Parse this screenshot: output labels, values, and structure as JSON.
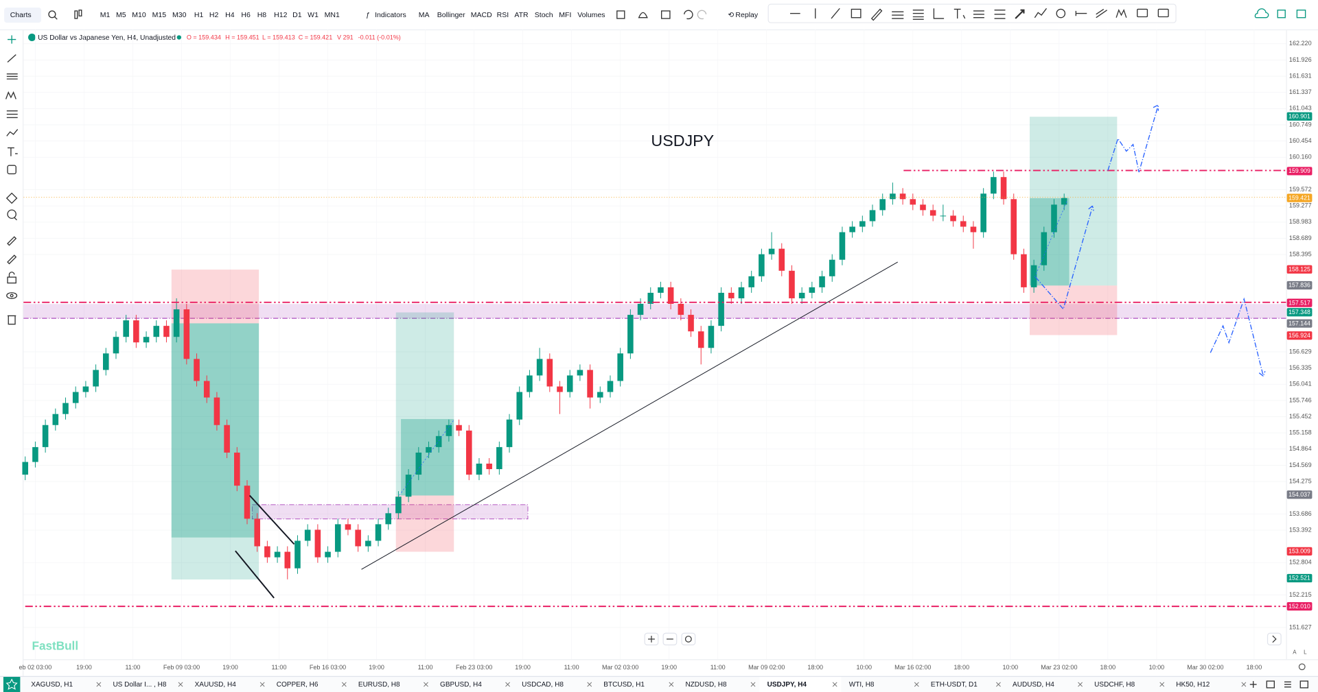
{
  "toolbar": {
    "charts": "Charts",
    "timeframes": [
      "M1",
      "M5",
      "M10",
      "M15",
      "M30",
      "H1",
      "H2",
      "H4",
      "H6",
      "H8",
      "H12",
      "D1",
      "W1",
      "MN1"
    ],
    "active_timeframe": "H4",
    "indicators": "Indicators",
    "studies": [
      "MA",
      "Bollinger",
      "MACD",
      "RSI",
      "ATR",
      "Stoch",
      "MFI",
      "Volumes"
    ],
    "replay": "Replay"
  },
  "legend": {
    "symbol": "US Dollar vs Japanese Yen, H4, Unadjusted",
    "stats": [
      "O = 159.434",
      "H = 159.451",
      "L = 159.413",
      "C = 159.421",
      "V 291",
      "-0.011 (-0.01%)"
    ]
  },
  "chart_data": {
    "type": "candlestick",
    "title": "USDJPY",
    "up_color": "#089981",
    "down_color": "#f23645",
    "grid": true,
    "ylim": [
      151.05,
      162.48
    ],
    "yticks": [
      {
        "value": 162.22,
        "label": "162.220"
      },
      {
        "value": 161.926,
        "label": "161.926"
      },
      {
        "value": 161.631,
        "label": "161.631"
      },
      {
        "value": 161.337,
        "label": "161.337"
      },
      {
        "value": 161.043,
        "label": "161.043"
      },
      {
        "value": 160.749,
        "label": "160.749"
      },
      {
        "value": 160.454,
        "label": "160.454"
      },
      {
        "value": 160.16,
        "label": "160.160"
      },
      {
        "value": 159.572,
        "label": "159.572"
      },
      {
        "value": 159.277,
        "label": "159.277"
      },
      {
        "value": 158.983,
        "label": "158.983"
      },
      {
        "value": 158.689,
        "label": "158.689"
      },
      {
        "value": 158.395,
        "label": "158.395"
      },
      {
        "value": 156.629,
        "label": "156.629"
      },
      {
        "value": 156.335,
        "label": "156.335"
      },
      {
        "value": 156.041,
        "label": "156.041"
      },
      {
        "value": 155.746,
        "label": "155.746"
      },
      {
        "value": 155.452,
        "label": "155.452"
      },
      {
        "value": 155.158,
        "label": "155.158"
      },
      {
        "value": 154.864,
        "label": "154.864"
      },
      {
        "value": 154.569,
        "label": "154.569"
      },
      {
        "value": 154.275,
        "label": "154.275"
      },
      {
        "value": 153.686,
        "label": "153.686"
      },
      {
        "value": 153.392,
        "label": "153.392"
      },
      {
        "value": 152.804,
        "label": "152.804"
      },
      {
        "value": 152.215,
        "label": "152.215"
      },
      {
        "value": 151.627,
        "label": "151.627"
      }
    ],
    "price_tags": [
      {
        "value": 160.901,
        "label": "160.901",
        "color": "#089981"
      },
      {
        "value": 159.909,
        "label": "159.909",
        "color": "#e91e63"
      },
      {
        "value": 159.421,
        "label": "159.421",
        "color": "#f5a623"
      },
      {
        "value": 158.125,
        "label": "158.125",
        "color": "#f23645"
      },
      {
        "value": 157.836,
        "label": "157.836",
        "color": "#787b86"
      },
      {
        "value": 157.517,
        "label": "157.517",
        "color": "#e91e63"
      },
      {
        "value": 157.348,
        "label": "157.348",
        "color": "#089981"
      },
      {
        "value": 157.144,
        "label": "157.144",
        "color": "#787b86"
      },
      {
        "value": 156.924,
        "label": "156.924",
        "color": "#f23645"
      },
      {
        "value": 154.037,
        "label": "154.037",
        "color": "#787b86"
      },
      {
        "value": 153.009,
        "label": "153.009",
        "color": "#f23645"
      },
      {
        "value": 152.521,
        "label": "152.521",
        "color": "#089981"
      },
      {
        "value": 152.01,
        "label": "152.010",
        "color": "#e91e63"
      }
    ],
    "x_labels": [
      "eb 02 03:00",
      "19:00",
      "11:00",
      "Feb 09 03:00",
      "19:00",
      "11:00",
      "Feb 16 03:00",
      "19:00",
      "11:00",
      "Feb 23 03:00",
      "19:00",
      "11:00",
      "Mar 02 03:00",
      "19:00",
      "11:00",
      "Mar 09 02:00",
      "18:00",
      "10:00",
      "Mar 16 02:00",
      "18:00",
      "10:00",
      "Mar 23 02:00",
      "18:00",
      "10:00",
      "Mar 30 02:00",
      "18:00"
    ],
    "candles": [
      [
        154.4,
        154.73,
        154.3,
        154.63
      ],
      [
        154.63,
        155.0,
        154.53,
        154.9
      ],
      [
        154.9,
        155.4,
        154.8,
        155.3
      ],
      [
        155.3,
        155.6,
        155.2,
        155.5
      ],
      [
        155.5,
        155.8,
        155.4,
        155.7
      ],
      [
        155.7,
        156.0,
        155.6,
        155.9
      ],
      [
        155.9,
        156.1,
        155.8,
        156.0
      ],
      [
        156.0,
        156.4,
        155.9,
        156.3
      ],
      [
        156.3,
        156.7,
        156.2,
        156.6
      ],
      [
        156.6,
        157.0,
        156.5,
        156.9
      ],
      [
        156.9,
        157.3,
        156.8,
        157.2
      ],
      [
        157.2,
        157.3,
        156.7,
        156.8
      ],
      [
        156.8,
        157.0,
        156.7,
        156.9
      ],
      [
        156.9,
        157.2,
        156.8,
        157.1
      ],
      [
        157.1,
        157.2,
        156.8,
        156.9
      ],
      [
        156.9,
        157.6,
        156.8,
        157.4
      ],
      [
        157.4,
        157.5,
        156.4,
        156.5
      ],
      [
        156.5,
        156.6,
        156.0,
        156.1
      ],
      [
        156.1,
        156.2,
        155.7,
        155.8
      ],
      [
        155.8,
        155.9,
        155.2,
        155.3
      ],
      [
        155.3,
        155.4,
        154.7,
        154.8
      ],
      [
        154.8,
        154.9,
        154.1,
        154.2
      ],
      [
        154.2,
        154.3,
        153.5,
        153.6
      ],
      [
        153.6,
        153.7,
        153.0,
        153.1
      ],
      [
        153.1,
        153.2,
        152.8,
        152.9
      ],
      [
        152.9,
        153.1,
        152.8,
        153.0
      ],
      [
        153.0,
        153.1,
        152.5,
        152.7
      ],
      [
        152.7,
        153.3,
        152.6,
        153.2
      ],
      [
        153.2,
        153.5,
        153.1,
        153.4
      ],
      [
        153.4,
        153.5,
        152.8,
        152.9
      ],
      [
        152.9,
        153.1,
        152.8,
        153.0
      ],
      [
        153.0,
        153.6,
        152.9,
        153.5
      ],
      [
        153.5,
        153.6,
        153.3,
        153.4
      ],
      [
        153.4,
        153.5,
        153.0,
        153.1
      ],
      [
        153.1,
        153.3,
        153.0,
        153.2
      ],
      [
        153.2,
        153.6,
        153.1,
        153.5
      ],
      [
        153.5,
        153.8,
        153.4,
        153.7
      ],
      [
        153.7,
        154.1,
        153.6,
        154.0
      ],
      [
        154.0,
        154.5,
        153.9,
        154.4
      ],
      [
        154.4,
        154.9,
        154.3,
        154.8
      ],
      [
        154.8,
        155.0,
        154.7,
        154.9
      ],
      [
        154.9,
        155.2,
        154.8,
        155.1
      ],
      [
        155.1,
        155.4,
        155.0,
        155.3
      ],
      [
        155.3,
        155.4,
        155.1,
        155.2
      ],
      [
        155.2,
        155.3,
        154.3,
        154.4
      ],
      [
        154.4,
        154.7,
        154.3,
        154.6
      ],
      [
        154.6,
        154.7,
        154.4,
        154.5
      ],
      [
        154.5,
        155.0,
        154.4,
        154.9
      ],
      [
        154.9,
        155.5,
        154.8,
        155.4
      ],
      [
        155.4,
        156.0,
        155.3,
        155.9
      ],
      [
        155.9,
        156.3,
        155.8,
        156.2
      ],
      [
        156.2,
        156.7,
        156.1,
        156.5
      ],
      [
        156.5,
        156.6,
        155.9,
        156.0
      ],
      [
        156.0,
        156.1,
        155.5,
        155.9
      ],
      [
        155.9,
        156.3,
        155.8,
        156.2
      ],
      [
        156.2,
        156.4,
        156.1,
        156.3
      ],
      [
        156.3,
        156.4,
        155.6,
        155.8
      ],
      [
        155.8,
        156.0,
        155.7,
        155.9
      ],
      [
        155.9,
        156.2,
        155.8,
        156.1
      ],
      [
        156.1,
        156.7,
        156.0,
        156.6
      ],
      [
        156.6,
        157.4,
        156.5,
        157.3
      ],
      [
        157.3,
        157.6,
        157.2,
        157.5
      ],
      [
        157.5,
        157.8,
        157.4,
        157.7
      ],
      [
        157.7,
        157.9,
        157.6,
        157.8
      ],
      [
        157.8,
        157.9,
        157.4,
        157.5
      ],
      [
        157.5,
        157.6,
        157.2,
        157.3
      ],
      [
        157.3,
        157.4,
        156.9,
        157.0
      ],
      [
        157.0,
        157.1,
        156.4,
        156.7
      ],
      [
        156.7,
        157.2,
        156.6,
        157.1
      ],
      [
        157.1,
        157.8,
        157.0,
        157.7
      ],
      [
        157.7,
        157.8,
        157.5,
        157.6
      ],
      [
        157.6,
        157.9,
        157.5,
        157.8
      ],
      [
        157.8,
        158.1,
        157.7,
        158.0
      ],
      [
        158.0,
        158.5,
        157.9,
        158.4
      ],
      [
        158.4,
        158.8,
        158.3,
        158.5
      ],
      [
        158.5,
        158.6,
        158.0,
        158.1
      ],
      [
        158.1,
        158.2,
        157.5,
        157.6
      ],
      [
        157.6,
        157.8,
        157.5,
        157.7
      ],
      [
        157.7,
        157.9,
        157.6,
        157.8
      ],
      [
        157.8,
        158.1,
        157.7,
        158.0
      ],
      [
        158.0,
        158.4,
        157.9,
        158.3
      ],
      [
        158.3,
        158.9,
        158.2,
        158.8
      ],
      [
        158.8,
        159.0,
        158.7,
        158.9
      ],
      [
        158.9,
        159.1,
        158.8,
        159.0
      ],
      [
        159.0,
        159.3,
        158.9,
        159.2
      ],
      [
        159.2,
        159.5,
        159.1,
        159.4
      ],
      [
        159.4,
        159.7,
        159.3,
        159.5
      ],
      [
        159.5,
        159.6,
        159.3,
        159.4
      ],
      [
        159.4,
        159.5,
        159.2,
        159.3
      ],
      [
        159.3,
        159.4,
        159.1,
        159.2
      ],
      [
        159.2,
        159.3,
        159.0,
        159.1
      ],
      [
        159.1,
        159.3,
        159.0,
        159.1
      ],
      [
        159.1,
        159.2,
        158.9,
        159.0
      ],
      [
        159.0,
        159.1,
        158.8,
        158.9
      ],
      [
        158.9,
        159.0,
        158.5,
        158.8
      ],
      [
        158.8,
        159.6,
        158.7,
        159.5
      ],
      [
        159.5,
        159.9,
        159.4,
        159.8
      ],
      [
        159.8,
        159.9,
        159.3,
        159.4
      ],
      [
        159.4,
        159.5,
        158.3,
        158.4
      ],
      [
        158.4,
        158.5,
        157.7,
        157.8
      ],
      [
        157.8,
        158.3,
        157.7,
        158.2
      ],
      [
        158.2,
        158.9,
        158.1,
        158.8
      ],
      [
        158.8,
        159.4,
        158.7,
        159.3
      ],
      [
        159.3,
        159.5,
        159.2,
        159.42
      ]
    ]
  },
  "watermark": "FastBull",
  "tabs": [
    "XAGUSD, H1",
    "US Dollar I... , H8",
    "XAUUSD, H4",
    "COPPER, H6",
    "EURUSD, H8",
    "GBPUSD, H4",
    "USDCAD, H8",
    "BTCUSD, H1",
    "NZDUSD, H8",
    "USDJPY, H4",
    "WTI, H8",
    "ETH-USDT, D1",
    "AUDUSD, H4",
    "USDCHF, H8",
    "HK50, H12"
  ],
  "active_tab": "USDJPY, H4"
}
